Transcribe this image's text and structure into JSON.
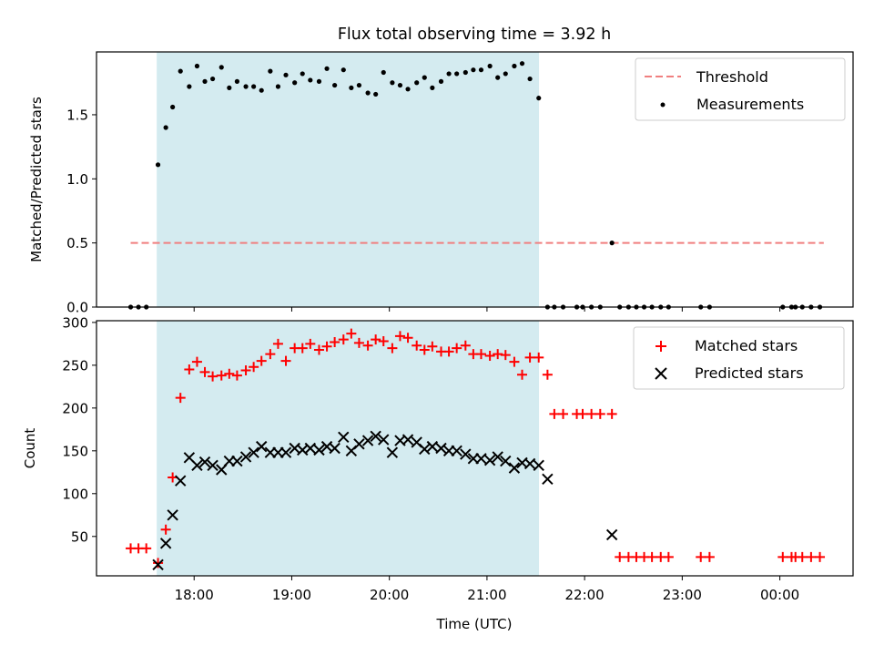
{
  "chart_data": [
    {
      "type": "scatter",
      "title": "Flux total observing time = 3.92 h",
      "ylabel": "Matched/Predicted stars",
      "xlabel": "",
      "xlim": [
        17.0,
        24.75
      ],
      "ylim": [
        0,
        1.99
      ],
      "yticks": [
        0.0,
        0.5,
        1.0,
        1.5
      ],
      "ytick_labels": [
        "0.0",
        "0.5",
        "1.0",
        "1.5"
      ],
      "shaded_region": {
        "x0": 17.617,
        "x1": 21.533,
        "color": "#d4ebf0"
      },
      "threshold": {
        "name": "Threshold",
        "value": 0.5,
        "x0": 17.35,
        "x1": 24.45,
        "color": "#f07f7f"
      },
      "series": [
        {
          "name": "Measurements",
          "color": "#000000",
          "x": [
            17.35,
            17.43,
            17.51,
            17.63,
            17.71,
            17.78,
            17.86,
            17.95,
            18.03,
            18.11,
            18.19,
            18.28,
            18.36,
            18.44,
            18.53,
            18.61,
            18.69,
            18.78,
            18.86,
            18.94,
            19.03,
            19.11,
            19.19,
            19.28,
            19.36,
            19.44,
            19.53,
            19.61,
            19.69,
            19.78,
            19.86,
            19.94,
            20.03,
            20.11,
            20.19,
            20.28,
            20.36,
            20.44,
            20.53,
            20.61,
            20.69,
            20.78,
            20.86,
            20.94,
            21.03,
            21.11,
            21.19,
            21.28,
            21.36,
            21.44,
            21.53,
            21.62,
            21.69,
            21.78,
            21.92,
            21.98,
            22.07,
            22.16,
            22.28,
            22.36,
            22.45,
            22.53,
            22.61,
            22.69,
            22.78,
            22.86,
            23.19,
            23.28,
            24.03,
            24.12,
            24.16,
            24.23,
            24.32,
            24.41
          ],
          "y": [
            0,
            0,
            0,
            1.11,
            1.4,
            1.56,
            1.84,
            1.72,
            1.88,
            1.76,
            1.78,
            1.87,
            1.71,
            1.76,
            1.72,
            1.72,
            1.69,
            1.84,
            1.72,
            1.81,
            1.75,
            1.82,
            1.77,
            1.76,
            1.86,
            1.73,
            1.85,
            1.71,
            1.73,
            1.67,
            1.66,
            1.83,
            1.75,
            1.73,
            1.7,
            1.75,
            1.79,
            1.71,
            1.76,
            1.82,
            1.82,
            1.83,
            1.85,
            1.85,
            1.88,
            1.79,
            1.82,
            1.88,
            1.9,
            1.78,
            1.63,
            0,
            0,
            0,
            0,
            0,
            0,
            0,
            0.5,
            0,
            0,
            0,
            0,
            0,
            0,
            0,
            0,
            0,
            0,
            0,
            0,
            0,
            0,
            0
          ]
        }
      ],
      "legend": [
        "Threshold",
        "Measurements"
      ],
      "legend_position": "top-right"
    },
    {
      "type": "scatter",
      "title": "",
      "xlabel": "Time (UTC)",
      "ylabel": "Count",
      "xlim": [
        17.0,
        24.75
      ],
      "ylim": [
        4,
        302
      ],
      "yticks": [
        50,
        100,
        150,
        200,
        250,
        300
      ],
      "ytick_labels": [
        "50",
        "100",
        "150",
        "200",
        "250",
        "300"
      ],
      "xticks": [
        18,
        19,
        20,
        21,
        22,
        23,
        24
      ],
      "xtick_labels": [
        "18:00",
        "19:00",
        "20:00",
        "21:00",
        "22:00",
        "23:00",
        "00:00"
      ],
      "shaded_region": {
        "x0": 17.617,
        "x1": 21.533,
        "color": "#d4ebf0"
      },
      "series": [
        {
          "name": "Matched stars",
          "marker": "+",
          "color": "#ff0000",
          "x": [
            17.35,
            17.43,
            17.51,
            17.63,
            17.71,
            17.78,
            17.86,
            17.95,
            18.03,
            18.11,
            18.19,
            18.28,
            18.36,
            18.44,
            18.53,
            18.61,
            18.69,
            18.78,
            18.86,
            18.94,
            19.03,
            19.11,
            19.19,
            19.28,
            19.36,
            19.44,
            19.53,
            19.61,
            19.69,
            19.78,
            19.86,
            19.94,
            20.03,
            20.11,
            20.19,
            20.28,
            20.36,
            20.44,
            20.53,
            20.61,
            20.69,
            20.78,
            20.86,
            20.94,
            21.03,
            21.11,
            21.19,
            21.28,
            21.36,
            21.44,
            21.53,
            21.62,
            21.69,
            21.78,
            21.92,
            21.98,
            22.07,
            22.16,
            22.28,
            22.36,
            22.45,
            22.53,
            22.61,
            22.69,
            22.78,
            22.86,
            23.19,
            23.28,
            24.03,
            24.12,
            24.16,
            24.23,
            24.32,
            24.41
          ],
          "y": [
            36,
            36,
            36,
            19,
            58,
            119,
            212,
            245,
            254,
            242,
            237,
            238,
            240,
            238,
            244,
            248,
            255,
            263,
            275,
            255,
            270,
            270,
            275,
            268,
            272,
            277,
            280,
            287,
            276,
            273,
            280,
            278,
            270,
            284,
            282,
            273,
            268,
            272,
            266,
            266,
            270,
            273,
            263,
            263,
            261,
            263,
            262,
            254,
            239,
            259,
            259,
            239,
            193,
            193,
            193,
            193,
            193,
            193,
            193,
            26,
            26,
            26,
            26,
            26,
            26,
            26,
            26,
            26,
            26,
            26,
            26,
            26,
            26,
            26
          ]
        },
        {
          "name": "Predicted stars",
          "marker": "x",
          "color": "#000000",
          "x": [
            17.63,
            17.71,
            17.78,
            17.86,
            17.95,
            18.03,
            18.11,
            18.19,
            18.28,
            18.36,
            18.44,
            18.53,
            18.61,
            18.69,
            18.78,
            18.86,
            18.94,
            19.03,
            19.11,
            19.19,
            19.28,
            19.36,
            19.44,
            19.53,
            19.61,
            19.69,
            19.78,
            19.86,
            19.94,
            20.03,
            20.11,
            20.19,
            20.28,
            20.36,
            20.44,
            20.53,
            20.61,
            20.69,
            20.78,
            20.86,
            20.94,
            21.03,
            21.11,
            21.19,
            21.28,
            21.36,
            21.44,
            21.53,
            21.62,
            22.28
          ],
          "y": [
            17,
            42,
            75,
            115,
            142,
            133,
            137,
            133,
            128,
            138,
            138,
            143,
            148,
            155,
            148,
            148,
            148,
            153,
            151,
            153,
            151,
            155,
            153,
            166,
            150,
            158,
            162,
            167,
            163,
            148,
            162,
            163,
            160,
            152,
            155,
            153,
            150,
            150,
            146,
            141,
            141,
            139,
            143,
            138,
            130,
            136,
            135,
            133,
            117,
            52
          ]
        }
      ],
      "legend": [
        "Matched stars",
        "Predicted stars"
      ],
      "legend_position": "top-right"
    }
  ]
}
